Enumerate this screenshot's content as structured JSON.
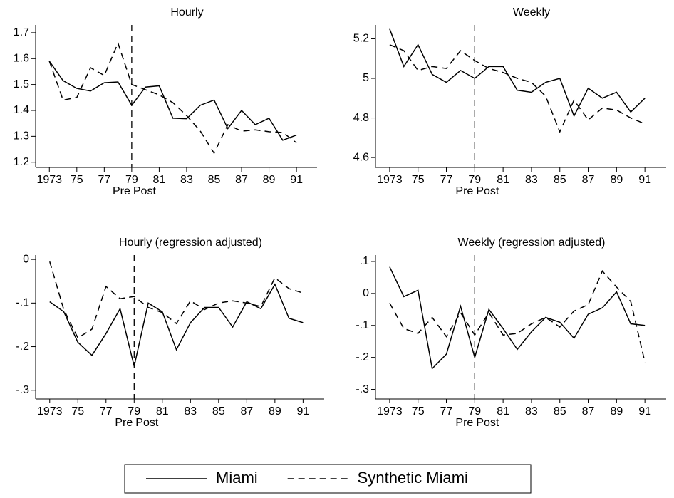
{
  "chart_data": [
    {
      "type": "line",
      "title": "Hourly",
      "annotations": [
        "Pre",
        "Post"
      ],
      "vline": 1979,
      "x": [
        1973,
        1974,
        1975,
        1976,
        1977,
        1978,
        1979,
        1980,
        1981,
        1982,
        1983,
        1984,
        1985,
        1986,
        1987,
        1988,
        1989,
        1990,
        1991
      ],
      "series": [
        {
          "values": [
            1.59,
            1.515,
            1.485,
            1.475,
            1.507,
            1.51,
            1.42,
            1.49,
            1.495,
            1.37,
            1.368,
            1.42,
            1.44,
            1.33,
            1.4,
            1.345,
            1.37,
            1.285,
            1.305
          ]
        },
        {
          "values": [
            1.59,
            1.44,
            1.45,
            1.565,
            1.535,
            1.66,
            1.5,
            1.48,
            1.46,
            1.43,
            1.38,
            1.32,
            1.235,
            1.345,
            1.32,
            1.325,
            1.318,
            1.315,
            1.275
          ]
        }
      ],
      "xlim": [
        1972,
        1992.5
      ],
      "xticks": [
        1973,
        {
          "value": 1975,
          "label": "75"
        },
        {
          "value": 1977,
          "label": "77"
        },
        {
          "value": 1979,
          "label": "79"
        },
        {
          "value": 1981,
          "label": "81"
        },
        {
          "value": 1983,
          "label": "83"
        },
        {
          "value": 1985,
          "label": "85"
        },
        {
          "value": 1987,
          "label": "87"
        },
        {
          "value": 1989,
          "label": "89"
        },
        {
          "value": 1991,
          "label": "91"
        }
      ],
      "ylim": [
        1.18,
        1.73
      ],
      "yticks": [
        1.2,
        1.3,
        1.4,
        1.5,
        1.6,
        1.7
      ]
    },
    {
      "type": "line",
      "title": "Weekly",
      "annotations": [
        "Pre",
        "Post"
      ],
      "vline": 1979,
      "x": [
        1973,
        1974,
        1975,
        1976,
        1977,
        1978,
        1979,
        1980,
        1981,
        1982,
        1983,
        1984,
        1985,
        1986,
        1987,
        1988,
        1989,
        1990,
        1991
      ],
      "series": [
        {
          "values": [
            5.25,
            5.06,
            5.17,
            5.02,
            4.98,
            5.04,
            5.0,
            5.06,
            5.06,
            4.94,
            4.93,
            4.98,
            5.0,
            4.81,
            4.95,
            4.9,
            4.93,
            4.83,
            4.9
          ]
        },
        {
          "values": [
            5.17,
            5.14,
            5.04,
            5.06,
            5.05,
            5.14,
            5.09,
            5.05,
            5.03,
            5.0,
            4.98,
            4.91,
            4.73,
            4.89,
            4.79,
            4.85,
            4.84,
            4.8,
            4.77
          ]
        }
      ],
      "xlim": [
        1972,
        1992.5
      ],
      "xticks": [
        1973,
        {
          "value": 1975,
          "label": "75"
        },
        {
          "value": 1977,
          "label": "77"
        },
        {
          "value": 1979,
          "label": "79"
        },
        {
          "value": 1981,
          "label": "81"
        },
        {
          "value": 1983,
          "label": "83"
        },
        {
          "value": 1985,
          "label": "85"
        },
        {
          "value": 1987,
          "label": "87"
        },
        {
          "value": 1989,
          "label": "89"
        },
        {
          "value": 1991,
          "label": "91"
        }
      ],
      "ylim": [
        4.55,
        5.27
      ],
      "yticks": [
        4.6,
        4.8,
        5,
        5.2
      ]
    },
    {
      "type": "line",
      "title": "Hourly (regression adjusted)",
      "annotations": [
        "Pre",
        "Post"
      ],
      "vline": 1979,
      "x": [
        1973,
        1974,
        1975,
        1976,
        1977,
        1978,
        1979,
        1980,
        1981,
        1982,
        1983,
        1984,
        1985,
        1986,
        1987,
        1988,
        1989,
        1990,
        1991
      ],
      "series": [
        {
          "values": [
            -0.097,
            -0.12,
            -0.19,
            -0.22,
            -0.17,
            -0.113,
            -0.245,
            -0.1,
            -0.12,
            -0.207,
            -0.145,
            -0.11,
            -0.11,
            -0.155,
            -0.097,
            -0.113,
            -0.057,
            -0.135,
            -0.145
          ]
        },
        {
          "values": [
            -0.005,
            -0.115,
            -0.18,
            -0.16,
            -0.062,
            -0.09,
            -0.085,
            -0.11,
            -0.122,
            -0.147,
            -0.095,
            -0.115,
            -0.1,
            -0.095,
            -0.1,
            -0.108,
            -0.042,
            -0.067,
            -0.077
          ]
        }
      ],
      "xlim": [
        1972,
        1992.5
      ],
      "xticks": [
        1973,
        {
          "value": 1975,
          "label": "75"
        },
        {
          "value": 1977,
          "label": "77"
        },
        {
          "value": 1979,
          "label": "79"
        },
        {
          "value": 1981,
          "label": "81"
        },
        {
          "value": 1983,
          "label": "83"
        },
        {
          "value": 1985,
          "label": "85"
        },
        {
          "value": 1987,
          "label": "87"
        },
        {
          "value": 1989,
          "label": "89"
        },
        {
          "value": 1991,
          "label": "91"
        }
      ],
      "ylim": [
        -0.32,
        0.01
      ],
      "yticks": [
        0,
        {
          "value": -0.1,
          "label": "-.1"
        },
        {
          "value": -0.2,
          "label": "-.2"
        },
        {
          "value": -0.3,
          "label": "-.3"
        }
      ]
    },
    {
      "type": "line",
      "title": "Weekly (regression adjusted)",
      "annotations": [
        "Pre",
        "Post"
      ],
      "vline": 1979,
      "x": [
        1973,
        1974,
        1975,
        1976,
        1977,
        1978,
        1979,
        1980,
        1981,
        1982,
        1983,
        1984,
        1985,
        1986,
        1987,
        1988,
        1989,
        1990,
        1991
      ],
      "series": [
        {
          "values": [
            0.083,
            -0.01,
            0.01,
            -0.235,
            -0.19,
            -0.04,
            -0.2,
            -0.05,
            -0.11,
            -0.175,
            -0.12,
            -0.075,
            -0.09,
            -0.14,
            -0.065,
            -0.045,
            0.005,
            -0.095,
            -0.1
          ]
        },
        {
          "values": [
            -0.03,
            -0.11,
            -0.125,
            -0.075,
            -0.135,
            -0.06,
            -0.13,
            -0.06,
            -0.13,
            -0.125,
            -0.095,
            -0.075,
            -0.105,
            -0.055,
            -0.035,
            0.07,
            0.02,
            -0.025,
            -0.215
          ]
        }
      ],
      "xlim": [
        1972,
        1992.5
      ],
      "xticks": [
        1973,
        {
          "value": 1975,
          "label": "75"
        },
        {
          "value": 1977,
          "label": "77"
        },
        {
          "value": 1979,
          "label": "79"
        },
        {
          "value": 1981,
          "label": "81"
        },
        {
          "value": 1983,
          "label": "83"
        },
        {
          "value": 1985,
          "label": "85"
        },
        {
          "value": 1987,
          "label": "87"
        },
        {
          "value": 1989,
          "label": "89"
        },
        {
          "value": 1991,
          "label": "91"
        }
      ],
      "ylim": [
        -0.33,
        0.12
      ],
      "yticks": [
        {
          "value": 0.1,
          "label": ".1"
        },
        0,
        {
          "value": -0.1,
          "label": "-.1"
        },
        {
          "value": -0.2,
          "label": "-.2"
        },
        {
          "value": -0.3,
          "label": "-.3"
        }
      ]
    }
  ],
  "legend": {
    "position": "bottom",
    "entries": [
      {
        "name": "Miami",
        "color": "#000000",
        "dash": "solid"
      },
      {
        "name": "Synthetic Miami",
        "color": "#000000",
        "dash": "dashed"
      }
    ]
  }
}
